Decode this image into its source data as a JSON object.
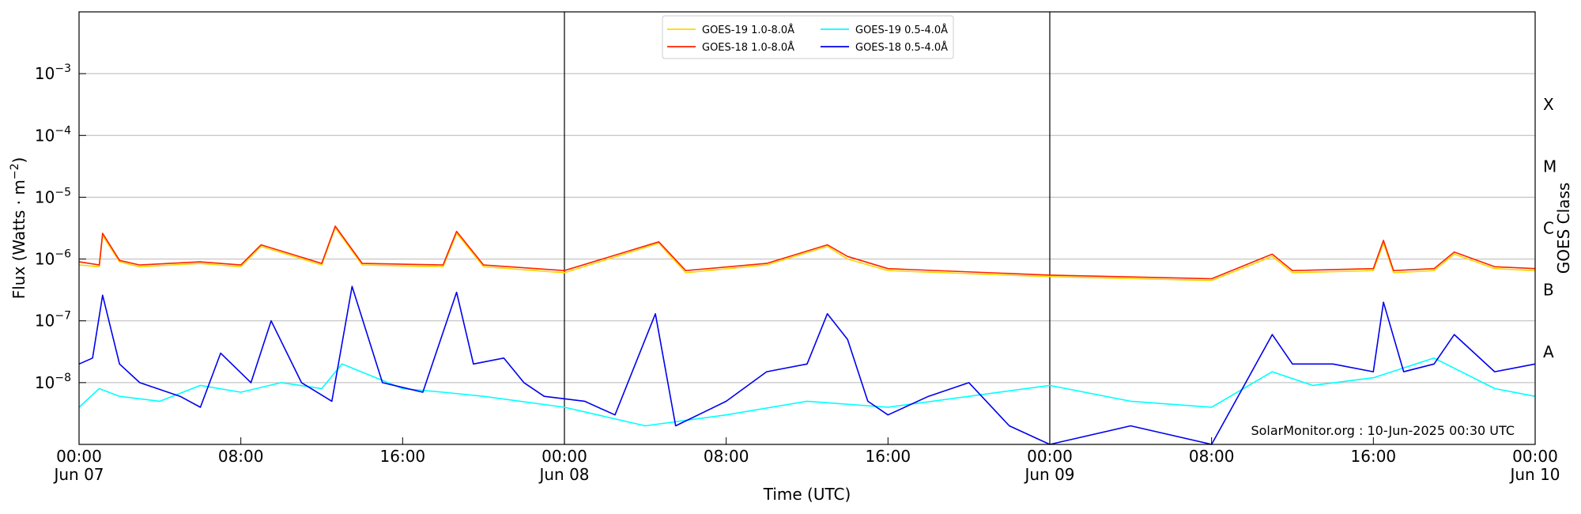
{
  "chart_data": {
    "type": "line",
    "title": "",
    "xlabel": "Time (UTC)",
    "ylabel_main": "Flux (Watts · m",
    "ylabel_sup": "−2",
    "ylabel_close": ")",
    "y2label": "GOES Class",
    "yscale": "log",
    "ylim": [
      1e-09,
      0.01
    ],
    "xlim": [
      "2025-06-07T00:00",
      "2025-06-10T00:00"
    ],
    "grid": "horizontal",
    "legend_position": "top-center",
    "watermark": "SolarMonitor.org : 10-Jun-2025 00:30 UTC",
    "y_ticks": [
      {
        "value": 1e-08,
        "base": "10",
        "exp": "−8"
      },
      {
        "value": 1e-07,
        "base": "10",
        "exp": "−7"
      },
      {
        "value": 1e-06,
        "base": "10",
        "exp": "−6"
      },
      {
        "value": 1e-05,
        "base": "10",
        "exp": "−5"
      },
      {
        "value": 0.0001,
        "base": "10",
        "exp": "−4"
      },
      {
        "value": 0.001,
        "base": "10",
        "exp": "−3"
      }
    ],
    "class_labels": [
      {
        "label": "A",
        "value": 3.16e-08
      },
      {
        "label": "B",
        "value": 3.16e-07
      },
      {
        "label": "C",
        "value": 3.16e-06
      },
      {
        "label": "M",
        "value": 3.16e-05
      },
      {
        "label": "X",
        "value": 0.000316
      }
    ],
    "x_ticks": [
      {
        "value": "2025-06-07T00:00",
        "time": "00:00",
        "date": "Jun 07"
      },
      {
        "value": "2025-06-07T08:00",
        "time": "08:00",
        "date": ""
      },
      {
        "value": "2025-06-07T16:00",
        "time": "16:00",
        "date": ""
      },
      {
        "value": "2025-06-08T00:00",
        "time": "00:00",
        "date": "Jun 08"
      },
      {
        "value": "2025-06-08T08:00",
        "time": "08:00",
        "date": ""
      },
      {
        "value": "2025-06-08T16:00",
        "time": "16:00",
        "date": ""
      },
      {
        "value": "2025-06-09T00:00",
        "time": "00:00",
        "date": "Jun 09"
      },
      {
        "value": "2025-06-09T08:00",
        "time": "08:00",
        "date": ""
      },
      {
        "value": "2025-06-09T16:00",
        "time": "16:00",
        "date": ""
      },
      {
        "value": "2025-06-10T00:00",
        "time": "00:00",
        "date": "Jun 10"
      }
    ],
    "day_boundaries": [
      "2025-06-08T00:00",
      "2025-06-09T00:00"
    ],
    "series": [
      {
        "name": "GOES-19 1.0-8.0",
        "unit": "Å",
        "color": "#ffd700",
        "x": [
          "2025-06-07T00:00",
          "2025-06-07T01:00",
          "2025-06-07T01:10",
          "2025-06-07T02:00",
          "2025-06-07T03:00",
          "2025-06-07T06:00",
          "2025-06-07T08:00",
          "2025-06-07T09:00",
          "2025-06-07T12:00",
          "2025-06-07T12:40",
          "2025-06-07T14:00",
          "2025-06-07T18:00",
          "2025-06-07T18:40",
          "2025-06-07T20:00",
          "2025-06-08T00:00",
          "2025-06-08T04:40",
          "2025-06-08T06:00",
          "2025-06-08T10:00",
          "2025-06-08T13:00",
          "2025-06-08T14:00",
          "2025-06-08T16:00",
          "2025-06-09T00:00",
          "2025-06-09T08:00",
          "2025-06-09T11:00",
          "2025-06-09T12:00",
          "2025-06-09T16:00",
          "2025-06-09T16:30",
          "2025-06-09T17:00",
          "2025-06-09T19:00",
          "2025-06-09T20:00",
          "2025-06-09T22:00",
          "2025-06-10T00:00"
        ],
        "y": [
          8e-07,
          7.5e-07,
          2.4e-06,
          9e-07,
          7.5e-07,
          8.5e-07,
          7.5e-07,
          1.6e-06,
          8e-07,
          3.2e-06,
          8e-07,
          7.5e-07,
          2.6e-06,
          7.5e-07,
          6e-07,
          1.8e-06,
          6e-07,
          8e-07,
          1.6e-06,
          1e-06,
          6.5e-07,
          5.2e-07,
          4.5e-07,
          1.1e-06,
          6e-07,
          6.5e-07,
          1.8e-06,
          6e-07,
          6.5e-07,
          1.2e-06,
          7e-07,
          6.5e-07
        ]
      },
      {
        "name": "GOES-18 1.0-8.0",
        "unit": "Å",
        "color": "#ff2200",
        "x": [
          "2025-06-07T00:00",
          "2025-06-07T01:00",
          "2025-06-07T01:10",
          "2025-06-07T02:00",
          "2025-06-07T03:00",
          "2025-06-07T06:00",
          "2025-06-07T08:00",
          "2025-06-07T09:00",
          "2025-06-07T12:00",
          "2025-06-07T12:40",
          "2025-06-07T14:00",
          "2025-06-07T18:00",
          "2025-06-07T18:40",
          "2025-06-07T20:00",
          "2025-06-08T00:00",
          "2025-06-08T04:40",
          "2025-06-08T06:00",
          "2025-06-08T10:00",
          "2025-06-08T13:00",
          "2025-06-08T14:00",
          "2025-06-08T16:00",
          "2025-06-09T00:00",
          "2025-06-09T08:00",
          "2025-06-09T11:00",
          "2025-06-09T12:00",
          "2025-06-09T16:00",
          "2025-06-09T16:30",
          "2025-06-09T17:00",
          "2025-06-09T19:00",
          "2025-06-09T20:00",
          "2025-06-09T22:00",
          "2025-06-10T00:00"
        ],
        "y": [
          9e-07,
          8e-07,
          2.6e-06,
          9.5e-07,
          8e-07,
          9e-07,
          8e-07,
          1.7e-06,
          8.5e-07,
          3.4e-06,
          8.5e-07,
          8e-07,
          2.8e-06,
          8e-07,
          6.5e-07,
          1.9e-06,
          6.5e-07,
          8.5e-07,
          1.7e-06,
          1.1e-06,
          7e-07,
          5.5e-07,
          4.8e-07,
          1.2e-06,
          6.5e-07,
          7e-07,
          2e-06,
          6.5e-07,
          7e-07,
          1.3e-06,
          7.5e-07,
          7e-07
        ]
      },
      {
        "name": "GOES-19 0.5-4.0",
        "unit": "Å",
        "color": "#00ffff",
        "x": [
          "2025-06-07T00:00",
          "2025-06-07T01:00",
          "2025-06-07T02:00",
          "2025-06-07T04:00",
          "2025-06-07T06:00",
          "2025-06-07T08:00",
          "2025-06-07T10:00",
          "2025-06-07T12:00",
          "2025-06-07T13:00",
          "2025-06-07T16:00",
          "2025-06-07T18:00",
          "2025-06-07T20:00",
          "2025-06-08T00:00",
          "2025-06-08T04:00",
          "2025-06-08T08:00",
          "2025-06-08T12:00",
          "2025-06-08T16:00",
          "2025-06-08T20:00",
          "2025-06-09T00:00",
          "2025-06-09T04:00",
          "2025-06-09T08:00",
          "2025-06-09T11:00",
          "2025-06-09T13:00",
          "2025-06-09T16:00",
          "2025-06-09T19:00",
          "2025-06-09T22:00",
          "2025-06-10T00:00"
        ],
        "y": [
          4e-09,
          8e-09,
          6e-09,
          5e-09,
          9e-09,
          7e-09,
          1e-08,
          8e-09,
          2e-08,
          8e-09,
          7e-09,
          6e-09,
          4e-09,
          2e-09,
          3e-09,
          5e-09,
          4e-09,
          6e-09,
          9e-09,
          5e-09,
          4e-09,
          1.5e-08,
          9e-09,
          1.2e-08,
          2.5e-08,
          8e-09,
          6e-09
        ]
      },
      {
        "name": "GOES-18 0.5-4.0",
        "unit": "Å",
        "color": "#0000ee",
        "x": [
          "2025-06-07T00:00",
          "2025-06-07T00:40",
          "2025-06-07T01:10",
          "2025-06-07T02:00",
          "2025-06-07T03:00",
          "2025-06-07T05:00",
          "2025-06-07T06:00",
          "2025-06-07T07:00",
          "2025-06-07T08:30",
          "2025-06-07T09:30",
          "2025-06-07T11:00",
          "2025-06-07T12:30",
          "2025-06-07T13:30",
          "2025-06-07T15:00",
          "2025-06-07T17:00",
          "2025-06-07T18:40",
          "2025-06-07T19:30",
          "2025-06-07T21:00",
          "2025-06-07T22:00",
          "2025-06-07T23:00",
          "2025-06-08T01:00",
          "2025-06-08T02:30",
          "2025-06-08T04:30",
          "2025-06-08T05:30",
          "2025-06-08T08:00",
          "2025-06-08T10:00",
          "2025-06-08T12:00",
          "2025-06-08T13:00",
          "2025-06-08T14:00",
          "2025-06-08T15:00",
          "2025-06-08T16:00",
          "2025-06-08T18:00",
          "2025-06-08T20:00",
          "2025-06-08T22:00",
          "2025-06-09T00:00",
          "2025-06-09T04:00",
          "2025-06-09T08:00",
          "2025-06-09T11:00",
          "2025-06-09T12:00",
          "2025-06-09T14:00",
          "2025-06-09T16:00",
          "2025-06-09T16:30",
          "2025-06-09T17:30",
          "2025-06-09T19:00",
          "2025-06-09T20:00",
          "2025-06-09T22:00",
          "2025-06-10T00:00"
        ],
        "y": [
          2e-08,
          2.5e-08,
          2.6e-07,
          2e-08,
          1e-08,
          6e-09,
          4e-09,
          3e-08,
          1e-08,
          1e-07,
          1e-08,
          5e-09,
          3.6e-07,
          1e-08,
          7e-09,
          2.9e-07,
          2e-08,
          2.5e-08,
          1e-08,
          6e-09,
          5e-09,
          3e-09,
          1.3e-07,
          2e-09,
          5e-09,
          1.5e-08,
          2e-08,
          1.3e-07,
          5e-08,
          5e-09,
          3e-09,
          6e-09,
          1e-08,
          2e-09,
          1e-09,
          2e-09,
          1e-09,
          6e-08,
          2e-08,
          2e-08,
          1.5e-08,
          2e-07,
          1.5e-08,
          2e-08,
          6e-08,
          1.5e-08,
          2e-08
        ]
      }
    ]
  }
}
